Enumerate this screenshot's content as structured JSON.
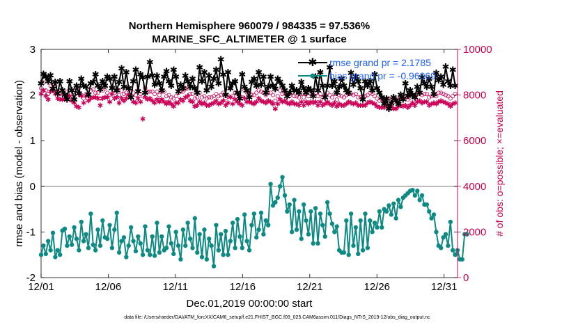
{
  "chart_data": {
    "type": "line",
    "title": "Northern Hemisphere 960079 / 984335 = 97.536%",
    "subtitle": "MARINE_SFC_ALTIMETER @ 1 surface",
    "xlabel": "Dec.01,2019 00:00:00 start",
    "ylabel": "rmse and bias (model - observation)",
    "y2label": "# of obs: o=possible; ×=evaluated",
    "footnote": "data file: /Users/raeder/DAI/ATM_forcXX/CAM6_setup/f.e21.FHIST_BGC.f09_025.CAM6assim.011/Diags_NTrS_2019-12/obs_diag_output.nc",
    "x_tick_labels": [
      "12/01",
      "12/06",
      "12/11",
      "12/16",
      "12/21",
      "12/26",
      "12/31"
    ],
    "x_tick_values": [
      0,
      5,
      10,
      15,
      20,
      25,
      30
    ],
    "xlim": [
      0,
      31
    ],
    "ylim": [
      -2,
      3
    ],
    "y_tick_labels": [
      "-2",
      "-1",
      "0",
      "1",
      "2",
      "3"
    ],
    "y2lim": [
      0,
      10000
    ],
    "y2_tick_labels": [
      "0",
      "2000",
      "4000",
      "6000",
      "8000",
      "10000"
    ],
    "zero_line": 0,
    "legend_position": "top-right",
    "colors": {
      "rmse": "#000000",
      "bias": "#0e8a84",
      "obs": "#cc0057",
      "legend_text": "#1f5fff",
      "zero_line": "#999999"
    },
    "series": [
      {
        "name": "rmse grand pr = 2.1785",
        "axis": "left",
        "values": [
          2.25,
          2.46,
          2.4,
          2.3,
          2.43,
          2.13,
          2.28,
          2.03,
          2.3,
          2.1,
          2.0,
          1.9,
          2.3,
          2.1,
          1.9,
          2.2,
          2.03,
          2.35,
          2.2,
          2.18,
          2.0,
          2.25,
          2.28,
          2.45,
          2.2,
          2.12,
          2.3,
          2.2,
          2.4,
          2.35,
          2.15,
          2.4,
          2.1,
          2.28,
          2.58,
          2.18,
          2.5,
          2.15,
          1.95,
          2.3,
          2.55,
          2.08,
          2.45,
          2.38,
          2.05,
          2.4,
          2.72,
          2.43,
          2.22,
          2.42,
          2.25,
          2.1,
          2.4,
          2.52,
          2.3,
          2.2,
          2.55,
          2.4,
          2.08,
          2.22,
          2.15,
          2.42,
          2.3,
          2.18,
          2.35,
          2.15,
          2.05,
          2.6,
          2.3,
          2.5,
          2.1,
          2.42,
          2.18,
          2.35,
          2.55,
          2.25,
          2.78,
          2.44,
          2.0,
          2.5,
          2.15,
          2.25,
          2.3,
          2.05,
          1.92,
          2.45,
          2.18,
          2.1,
          1.95,
          2.28,
          2.35,
          2.2,
          2.5,
          2.22,
          2.4,
          2.05,
          2.18,
          2.4,
          2.2,
          2.13,
          2.35,
          2.28,
          2.2,
          2.1,
          1.97,
          2.05,
          2.2,
          2.1,
          2.1,
          2.05,
          2.28,
          2.15,
          2.05,
          2.15,
          2.1,
          1.97,
          2.4,
          2.1,
          2.5,
          2.2,
          1.95,
          2.2,
          2.6,
          2.2,
          2.3,
          2.05,
          2.18,
          2.35,
          2.2,
          2.1,
          2.05,
          2.48,
          2.22,
          2.4,
          2.3,
          2.15,
          1.9,
          2.3,
          2.2,
          2.3,
          2.1,
          2.45,
          2.15,
          2.05,
          1.95,
          1.8,
          1.92,
          1.7,
          1.82,
          1.95,
          1.88,
          1.8,
          2.0,
          1.9,
          2.25,
          1.98,
          2.1,
          2.0,
          1.95,
          2.18,
          2.05,
          2.38,
          2.25,
          2.18,
          2.35,
          2.18,
          2.02,
          2.48,
          2.32,
          2.4,
          2.22,
          2.62,
          2.3,
          2.2,
          2.55,
          2.2
        ]
      },
      {
        "name": "bias grand pr = -0.96069",
        "axis": "left",
        "values": [
          -1.5,
          -1.3,
          -1.48,
          -1.2,
          -1.4,
          -1.02,
          -1.55,
          -1.4,
          -1.5,
          -0.97,
          -0.93,
          -1.3,
          -1.1,
          -1.28,
          -0.9,
          -1.15,
          -1.4,
          -0.78,
          -1.2,
          -1.05,
          -1.35,
          -0.6,
          -1.28,
          -1.4,
          -0.95,
          -1.3,
          -0.75,
          -1.12,
          -1.15,
          -0.85,
          -1.35,
          -0.95,
          -0.58,
          -1.45,
          -1.2,
          -1.12,
          -1.55,
          -1.3,
          -0.9,
          -1.2,
          -1.42,
          -1.1,
          -1.25,
          -1.5,
          -0.88,
          -1.4,
          -1.5,
          -1.1,
          -1.52,
          -0.8,
          -1.45,
          -1.1,
          -1.4,
          -1.35,
          -0.88,
          -1.25,
          -1.48,
          -1.0,
          -1.3,
          -1.6,
          -0.95,
          -1.3,
          -0.8,
          -1.15,
          -1.35,
          -0.7,
          -1.45,
          -1.05,
          -1.55,
          -0.95,
          -1.6,
          -1.15,
          -1.3,
          -1.75,
          -0.85,
          -1.4,
          -1.05,
          -1.5,
          -0.98,
          -1.5,
          -1.2,
          -0.8,
          -1.35,
          -0.72,
          -1.1,
          -1.35,
          -0.62,
          -1.2,
          -1.4,
          -0.85,
          -0.6,
          -1.12,
          -0.95,
          -0.58,
          -1.05,
          -0.75,
          -0.85,
          0.05,
          -0.42,
          -0.35,
          -0.25,
          0.0,
          0.2,
          -0.2,
          -0.55,
          -0.4,
          -1.0,
          -0.3,
          -0.95,
          -0.55,
          -1.15,
          -0.4,
          -0.75,
          -1.05,
          -0.55,
          -1.25,
          -0.48,
          -1.25,
          -0.6,
          -0.85,
          -1.1,
          -0.35,
          -0.6,
          -0.82,
          -1.0,
          -0.88,
          -1.4,
          -1.45,
          -1.45,
          -0.75,
          -1.5,
          -0.6,
          -1.3,
          -0.9,
          -1.48,
          -0.75,
          -1.4,
          -0.6,
          -1.35,
          -0.75,
          -1.0,
          -0.8,
          -0.9,
          -0.55,
          -0.9,
          -0.5,
          -0.55,
          -0.42,
          -0.62,
          -0.38,
          -0.7,
          -0.3,
          -0.45,
          -0.25,
          -0.2,
          -0.15,
          -0.1,
          -0.08,
          -0.2,
          -0.1,
          -0.3,
          -0.2,
          -0.4,
          -0.4,
          -0.55,
          -0.7,
          -0.62,
          -1.0,
          -1.3,
          -1.35,
          -1.12,
          -1.05,
          -1.3,
          -0.78,
          -1.4,
          -1.5,
          -1.4,
          -1.6,
          -1.6,
          -1.05,
          -1.05
        ]
      },
      {
        "name": "possible",
        "axis": "right",
        "marker": "o",
        "values": [
          8300,
          8550,
          8200,
          8050,
          8400,
          8500,
          8400,
          8150,
          8050,
          8100,
          7950,
          8150,
          8200,
          7900,
          8000,
          8300,
          8100,
          8000,
          7850,
          8050,
          8000,
          8200,
          8250,
          8100,
          8100,
          7850,
          8200,
          8300,
          8100,
          8000,
          8350,
          8100,
          8200,
          8000,
          8200,
          8050,
          8100,
          8300,
          8250,
          8100,
          8000,
          8200,
          8050,
          7950,
          8300,
          8150,
          8150,
          8150,
          8050,
          8150,
          8000,
          8150,
          8150,
          7950,
          8000,
          7900,
          7850,
          7950,
          8100,
          8150,
          8150,
          8250,
          8300,
          8050,
          8050,
          7850,
          7900,
          8100,
          7900,
          7950,
          7850,
          7900,
          7900,
          7950,
          8050,
          7950,
          8000,
          8100,
          7850,
          7950,
          8300,
          7950,
          8100,
          8050,
          7950,
          7900,
          8200,
          8100,
          8100,
          8000,
          8000,
          8100,
          8200,
          8150,
          8100,
          8000,
          8100,
          8100,
          8000,
          7750,
          7950,
          8200,
          8050,
          8100,
          8000,
          7950,
          8100,
          7950,
          7950,
          7900,
          8050,
          7900,
          8050,
          7950,
          8050,
          8000,
          8100,
          7950,
          8050,
          7900,
          8000,
          8100,
          8000,
          7900,
          8050,
          7800,
          8000,
          7950,
          7900,
          8000,
          8050,
          8050,
          8000,
          8050,
          7900,
          7900,
          7950,
          7950,
          8000,
          8100,
          8050,
          7950,
          7850,
          7750,
          7800,
          7800,
          7850,
          7850,
          7800,
          7700,
          7750,
          7800,
          7900,
          7850,
          7900,
          7800,
          7900,
          8000,
          7900,
          8050,
          8100,
          8000,
          8050,
          8050,
          7900,
          7950,
          8000,
          7950,
          8100,
          8100,
          8050,
          8000,
          7950,
          7850,
          7950,
          8050
        ]
      },
      {
        "name": "evaluated",
        "axis": "right",
        "marker": "x",
        "values": [
          8050,
          8200,
          7950,
          7800,
          8150,
          8200,
          8050,
          7850,
          7800,
          7800,
          7800,
          7950,
          7950,
          7750,
          7650,
          7500,
          7450,
          7950,
          7650,
          7950,
          7750,
          7850,
          7900,
          7900,
          7850,
          7550,
          7850,
          7900,
          7900,
          7700,
          8050,
          7850,
          7900,
          7650,
          7850,
          7750,
          7850,
          8000,
          7900,
          7700,
          7650,
          7850,
          7700,
          6950,
          7900,
          7800,
          7850,
          7750,
          7650,
          7800,
          7700,
          7800,
          7700,
          7600,
          7700,
          7600,
          7500,
          7650,
          7650,
          7800,
          7750,
          7900,
          7950,
          7750,
          7700,
          7500,
          7550,
          7700,
          7600,
          7650,
          7550,
          7550,
          7600,
          7650,
          7750,
          7600,
          7650,
          7750,
          7550,
          7650,
          7900,
          7600,
          7800,
          7700,
          7600,
          7550,
          7850,
          7700,
          7700,
          7650,
          7600,
          7700,
          7850,
          7750,
          7700,
          7650,
          7750,
          7700,
          7600,
          7400,
          7600,
          7800,
          7700,
          7750,
          7650,
          7600,
          7700,
          7600,
          7600,
          7550,
          7700,
          7550,
          7700,
          7600,
          7700,
          7650,
          7700,
          7550,
          7700,
          7550,
          7600,
          7700,
          7600,
          7550,
          7650,
          7500,
          7600,
          7550,
          7550,
          7600,
          7700,
          7650,
          7600,
          7650,
          7550,
          7550,
          7550,
          7550,
          7650,
          7700,
          7650,
          7600,
          7500,
          7450,
          7450,
          7450,
          7550,
          7500,
          7500,
          7400,
          7400,
          7500,
          7550,
          7500,
          7550,
          7450,
          7550,
          7650,
          7550,
          7700,
          7750,
          7650,
          7700,
          7700,
          7550,
          7600,
          7650,
          7600,
          7700,
          7750,
          7700,
          7650,
          7600,
          7500,
          7600,
          7650
        ]
      }
    ]
  }
}
